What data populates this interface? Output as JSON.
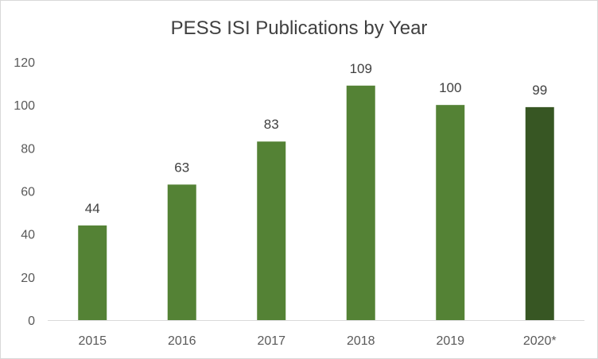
{
  "chart_data": {
    "type": "bar",
    "title": "PESS ISI Publications by Year",
    "categories": [
      "2015",
      "2016",
      "2017",
      "2018",
      "2019",
      "2020*"
    ],
    "values": [
      44,
      63,
      83,
      109,
      100,
      99
    ],
    "ylim": [
      0,
      120
    ],
    "yticks": [
      0,
      20,
      40,
      60,
      80,
      100,
      120
    ],
    "xlabel": "",
    "ylabel": "",
    "grid": false,
    "legend": "none",
    "bar_colors": [
      "#548235",
      "#548235",
      "#548235",
      "#548235",
      "#548235",
      "#375623"
    ]
  }
}
